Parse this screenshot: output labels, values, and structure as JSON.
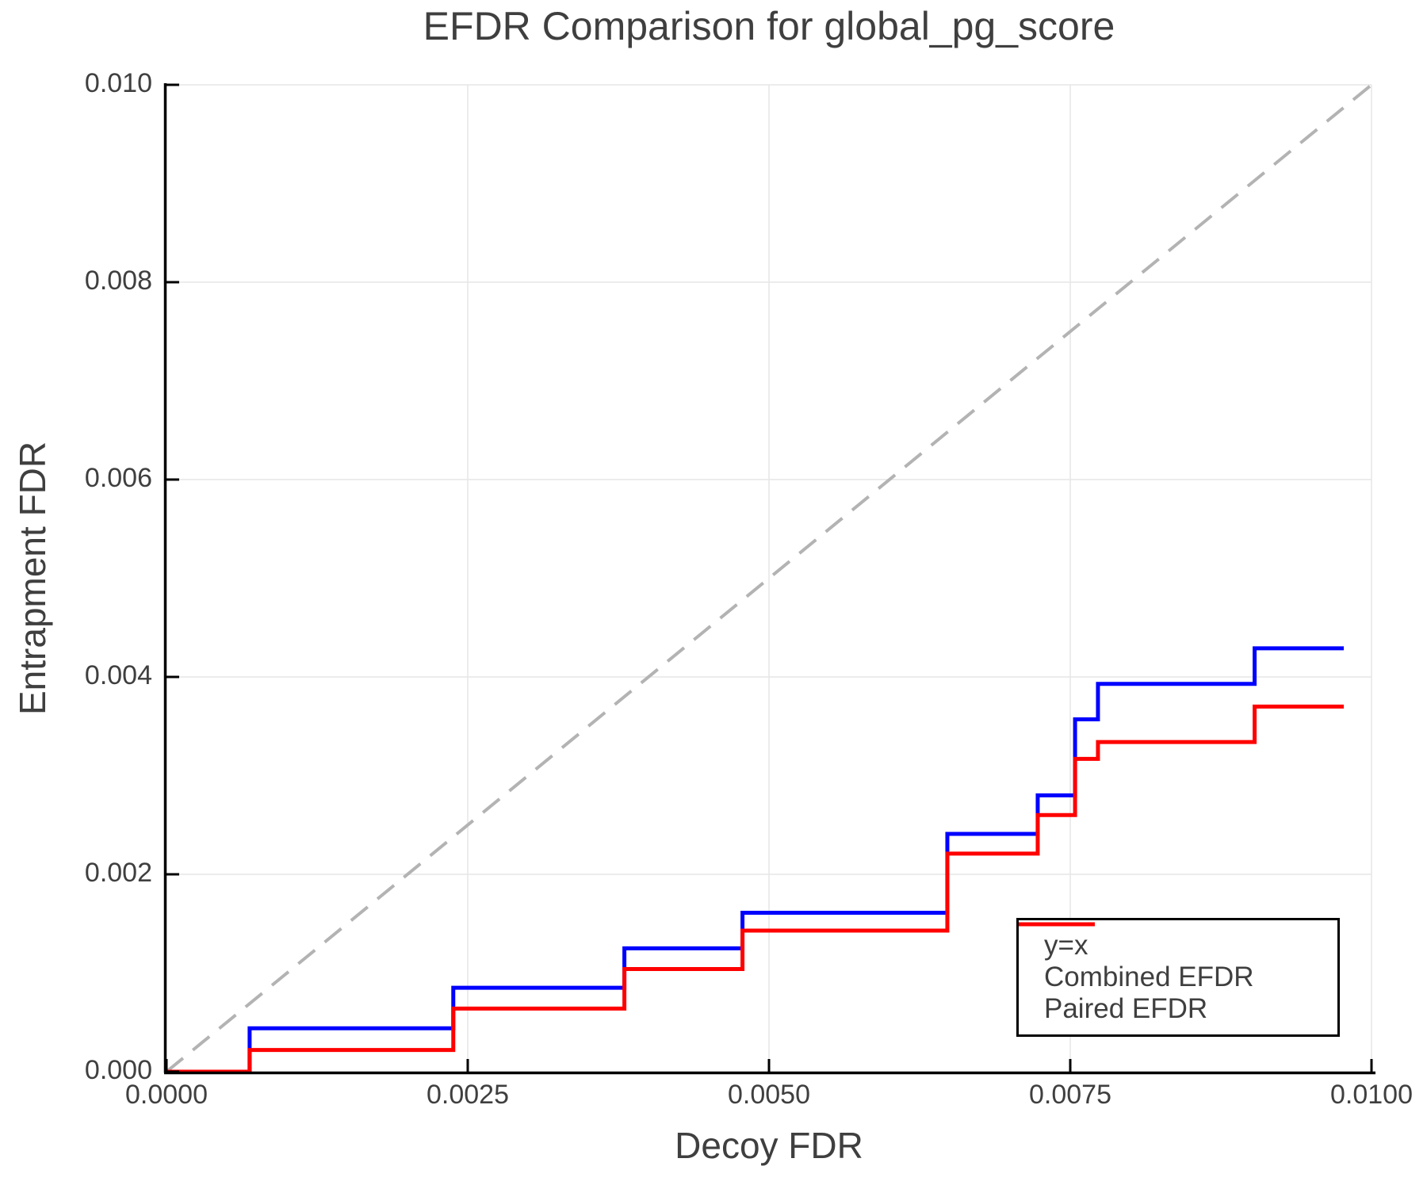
{
  "chart_data": {
    "type": "line",
    "title": "EFDR Comparison for global_pg_score",
    "xlabel": "Decoy FDR",
    "ylabel": "Entrapment FDR",
    "xlim": [
      0.0,
      0.01
    ],
    "ylim": [
      0.0,
      0.01
    ],
    "xtick_values": [
      0.0,
      0.0025,
      0.005,
      0.0075,
      0.01
    ],
    "xtick_labels": [
      "0.0000",
      "0.0025",
      "0.0050",
      "0.0075",
      "0.0100"
    ],
    "ytick_values": [
      0.0,
      0.002,
      0.004,
      0.006,
      0.008,
      0.01
    ],
    "ytick_labels": [
      "0.000",
      "0.002",
      "0.004",
      "0.006",
      "0.008",
      "0.010"
    ],
    "grid": true,
    "grid_color": "#e6e6e6",
    "spine_color": "#000000",
    "text_color": "#3f3f3f",
    "identity_line": {
      "label": "y=x",
      "x": [
        0.0,
        0.01
      ],
      "y": [
        0.0,
        0.01
      ],
      "color": "#b3b3b3",
      "style": "dashed"
    },
    "legend": {
      "position": "lower right",
      "entries": [
        {
          "label": "y=x",
          "color": "#b3b3b3",
          "dashed": true
        },
        {
          "label": "Combined EFDR",
          "color": "#0000ff",
          "dashed": false
        },
        {
          "label": "Paired EFDR",
          "color": "#ff0000",
          "dashed": false
        }
      ]
    },
    "series": [
      {
        "name": "Combined EFDR",
        "color": "#0000ff",
        "step": "post",
        "x": [
          0.0,
          0.00069,
          0.00238,
          0.0038,
          0.00478,
          0.00648,
          0.00723,
          0.00754,
          0.00773,
          0.00903,
          0.00977
        ],
        "y": [
          0.0,
          0.00044,
          0.00085,
          0.00125,
          0.00161,
          0.00241,
          0.0028,
          0.00357,
          0.00393,
          0.00429,
          0.00429
        ]
      },
      {
        "name": "Paired EFDR",
        "color": "#ff0000",
        "step": "post",
        "x": [
          0.0,
          0.00069,
          0.00238,
          0.0038,
          0.00478,
          0.00648,
          0.00723,
          0.00754,
          0.00773,
          0.00903,
          0.00977
        ],
        "y": [
          0.0,
          0.00022,
          0.00064,
          0.00104,
          0.00143,
          0.00221,
          0.0026,
          0.00317,
          0.00334,
          0.0037,
          0.0037
        ]
      }
    ]
  }
}
